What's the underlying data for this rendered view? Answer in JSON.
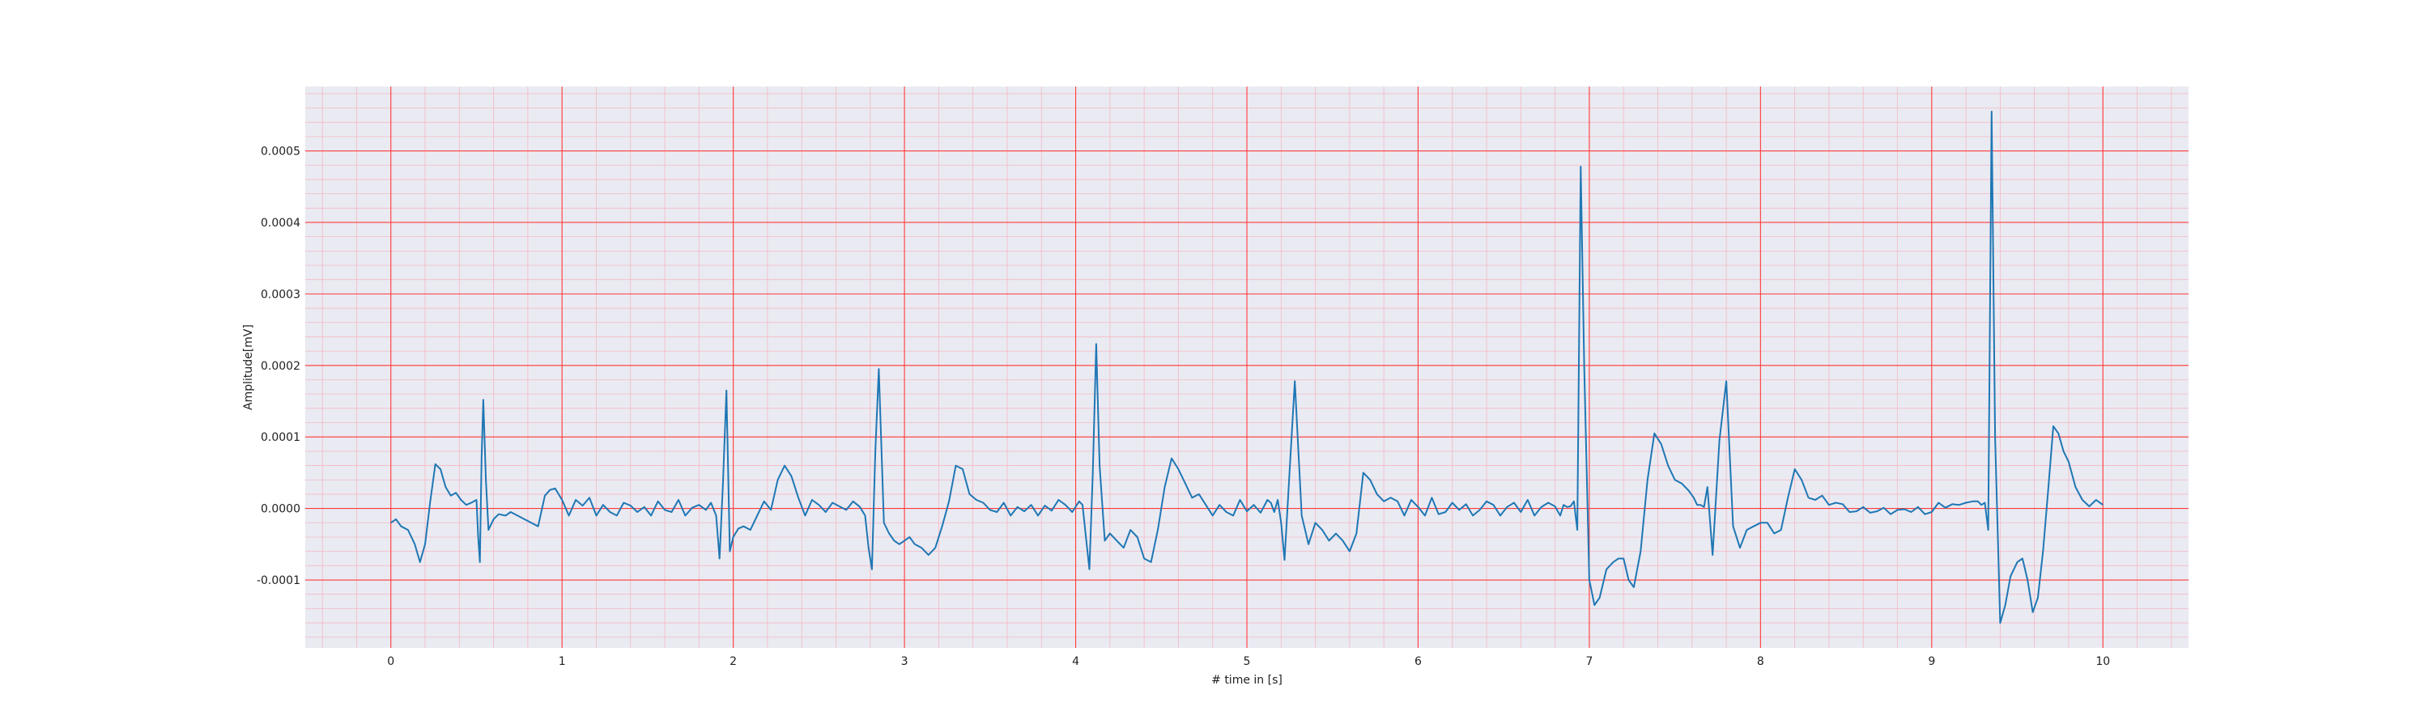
{
  "chart_data": {
    "type": "line",
    "title": "",
    "xlabel": "# time in [s]",
    "ylabel": "Amplitude[mV]",
    "xlim": [
      -0.5,
      10.5
    ],
    "ylim": [
      -0.000195,
      0.00059
    ],
    "xticks": [
      0,
      1,
      2,
      3,
      4,
      5,
      6,
      7,
      8,
      9,
      10
    ],
    "xtick_labels": [
      "0",
      "1",
      "2",
      "3",
      "4",
      "5",
      "6",
      "7",
      "8",
      "9",
      "10"
    ],
    "yticks": [
      -0.0001,
      0.0,
      0.0001,
      0.0002,
      0.0003,
      0.0004,
      0.0005
    ],
    "ytick_labels": [
      "-0.0001",
      "0.0000",
      "0.0001",
      "0.0002",
      "0.0003",
      "0.0004",
      "0.0005"
    ],
    "grid": true,
    "minor_grid": true,
    "legend": "none",
    "colors": {
      "background": "#eaeaf2",
      "major_grid": "#ff3b3b",
      "minor_grid": "#f4b8c4",
      "line": "#1f77b4"
    },
    "series": [
      {
        "x": [
          0.0,
          0.03,
          0.06,
          0.1,
          0.14,
          0.17,
          0.2,
          0.23,
          0.26,
          0.29,
          0.32,
          0.35,
          0.38,
          0.41,
          0.44,
          0.47,
          0.5,
          0.51,
          0.52,
          0.53,
          0.54,
          0.555,
          0.57,
          0.6,
          0.63,
          0.67,
          0.7,
          0.74,
          0.78,
          0.82,
          0.86,
          0.9,
          0.93,
          0.96,
          1.0,
          1.04,
          1.08,
          1.12,
          1.16,
          1.2,
          1.24,
          1.28,
          1.32,
          1.36,
          1.4,
          1.44,
          1.48,
          1.52,
          1.56,
          1.6,
          1.64,
          1.68,
          1.72,
          1.76,
          1.8,
          1.84,
          1.87,
          1.9,
          1.92,
          1.94,
          1.96,
          1.98,
          2.0,
          2.03,
          2.06,
          2.1,
          2.14,
          2.18,
          2.22,
          2.26,
          2.3,
          2.34,
          2.38,
          2.42,
          2.46,
          2.5,
          2.54,
          2.58,
          2.62,
          2.66,
          2.7,
          2.74,
          2.77,
          2.79,
          2.81,
          2.83,
          2.85,
          2.88,
          2.91,
          2.94,
          2.97,
          3.0,
          3.03,
          3.06,
          3.1,
          3.14,
          3.18,
          3.22,
          3.26,
          3.3,
          3.34,
          3.38,
          3.42,
          3.46,
          3.5,
          3.54,
          3.58,
          3.62,
          3.66,
          3.7,
          3.74,
          3.78,
          3.82,
          3.86,
          3.9,
          3.94,
          3.98,
          4.02,
          4.04,
          4.06,
          4.08,
          4.1,
          4.12,
          4.14,
          4.17,
          4.2,
          4.24,
          4.28,
          4.32,
          4.36,
          4.4,
          4.44,
          4.48,
          4.52,
          4.56,
          4.6,
          4.64,
          4.68,
          4.72,
          4.76,
          4.8,
          4.84,
          4.88,
          4.92,
          4.96,
          5.0,
          5.04,
          5.08,
          5.12,
          5.14,
          5.16,
          5.18,
          5.2,
          5.22,
          5.25,
          5.28,
          5.32,
          5.36,
          5.4,
          5.44,
          5.48,
          5.52,
          5.56,
          5.6,
          5.64,
          5.68,
          5.72,
          5.76,
          5.8,
          5.84,
          5.88,
          5.92,
          5.96,
          6.0,
          6.04,
          6.08,
          6.12,
          6.16,
          6.2,
          6.24,
          6.28,
          6.32,
          6.36,
          6.4,
          6.44,
          6.48,
          6.52,
          6.56,
          6.6,
          6.64,
          6.68,
          6.72,
          6.76,
          6.8,
          6.83,
          6.85,
          6.87,
          6.89,
          6.91,
          6.93,
          6.95,
          6.97,
          7.0,
          7.03,
          7.06,
          7.1,
          7.14,
          7.17,
          7.2,
          7.23,
          7.26,
          7.3,
          7.34,
          7.38,
          7.42,
          7.46,
          7.5,
          7.54,
          7.58,
          7.61,
          7.63,
          7.65,
          7.67,
          7.69,
          7.72,
          7.76,
          7.8,
          7.84,
          7.88,
          7.92,
          7.96,
          8.0,
          8.04,
          8.08,
          8.12,
          8.16,
          8.2,
          8.24,
          8.28,
          8.32,
          8.36,
          8.4,
          8.44,
          8.48,
          8.52,
          8.56,
          8.6,
          8.64,
          8.68,
          8.72,
          8.76,
          8.8,
          8.84,
          8.88,
          8.92,
          8.96,
          9.0,
          9.04,
          9.08,
          9.12,
          9.16,
          9.2,
          9.24,
          9.27,
          9.29,
          9.31,
          9.33,
          9.35,
          9.37,
          9.4,
          9.43,
          9.46,
          9.5,
          9.53,
          9.56,
          9.59,
          9.62,
          9.65,
          9.68,
          9.71,
          9.74,
          9.77,
          9.8,
          9.84,
          9.88,
          9.92,
          9.96,
          10.0
        ],
        "y": [
          -2e-05,
          -1.5e-05,
          -2.5e-05,
          -3e-05,
          -5e-05,
          -7.5e-05,
          -5e-05,
          1e-05,
          6.2e-05,
          5.5e-05,
          3e-05,
          1.8e-05,
          2.2e-05,
          1.2e-05,
          5e-06,
          8e-06,
          1.2e-05,
          -4e-05,
          -7.5e-05,
          7e-05,
          0.000152,
          4e-05,
          -3e-05,
          -1.5e-05,
          -8e-06,
          -1e-05,
          -5e-06,
          -1e-05,
          -1.5e-05,
          -2e-05,
          -2.5e-05,
          1.8e-05,
          2.6e-05,
          2.8e-05,
          1.2e-05,
          -1e-05,
          1.2e-05,
          4e-06,
          1.5e-05,
          -1e-05,
          5e-06,
          -5e-06,
          -1e-05,
          8e-06,
          4e-06,
          -5e-06,
          2e-06,
          -1e-05,
          1e-05,
          -2e-06,
          -5e-06,
          1.2e-05,
          -1e-05,
          1e-06,
          5e-06,
          -2e-06,
          8e-06,
          -1e-05,
          -7e-05,
          3.5e-05,
          0.000165,
          -6e-05,
          -4e-05,
          -2.8e-05,
          -2.5e-05,
          -3e-05,
          -1e-05,
          1e-05,
          -2e-06,
          4e-05,
          6e-05,
          4.5e-05,
          1.5e-05,
          -1e-05,
          1.2e-05,
          5e-06,
          -5e-06,
          8e-06,
          3e-06,
          -2e-06,
          1e-05,
          2e-06,
          -1e-05,
          -5.5e-05,
          -8.5e-05,
          8e-05,
          0.000195,
          -2e-05,
          -3.5e-05,
          -4.5e-05,
          -5e-05,
          -4.5e-05,
          -4e-05,
          -5e-05,
          -5.5e-05,
          -6.5e-05,
          -5.5e-05,
          -2.5e-05,
          1e-05,
          6e-05,
          5.5e-05,
          2e-05,
          1.2e-05,
          8e-06,
          -2e-06,
          -5e-06,
          8e-06,
          -1e-05,
          2e-06,
          -4e-06,
          5e-06,
          -1e-05,
          4e-06,
          -3e-06,
          1.2e-05,
          5e-06,
          -5e-06,
          1e-05,
          5e-06,
          -4e-05,
          -8.5e-05,
          5e-05,
          0.00023,
          6e-05,
          -4.5e-05,
          -3.5e-05,
          -4.5e-05,
          -5.5e-05,
          -3e-05,
          -4e-05,
          -7e-05,
          -7.5e-05,
          -3e-05,
          3e-05,
          7e-05,
          5.5e-05,
          3.5e-05,
          1.5e-05,
          2e-05,
          5e-06,
          -1e-05,
          5e-06,
          -5e-06,
          -1e-05,
          1.2e-05,
          -4e-06,
          5e-06,
          -6e-06,
          1.2e-05,
          8e-06,
          -5e-06,
          1.2e-05,
          -2e-05,
          -7.2e-05,
          5.5e-05,
          0.000178,
          -1e-05,
          -5e-05,
          -2e-05,
          -3e-05,
          -4.5e-05,
          -3.5e-05,
          -4.5e-05,
          -6e-05,
          -3.5e-05,
          5e-05,
          4e-05,
          2e-05,
          1e-05,
          1.5e-05,
          1e-05,
          -1e-05,
          1.2e-05,
          2e-06,
          -1e-05,
          1.5e-05,
          -8e-06,
          -5e-06,
          8e-06,
          -2e-06,
          6e-06,
          -1e-05,
          -2e-06,
          1e-05,
          5e-06,
          -1e-05,
          2e-06,
          8e-06,
          -5e-06,
          1.2e-05,
          -1e-05,
          2e-06,
          8e-06,
          3e-06,
          -1e-05,
          5e-06,
          2e-06,
          3e-06,
          1e-05,
          -3e-05,
          0.000478,
          0.0002,
          -0.0001,
          -0.000135,
          -0.000125,
          -8.5e-05,
          -7.5e-05,
          -7e-05,
          -7e-05,
          -0.0001,
          -0.00011,
          -6e-05,
          4e-05,
          0.000105,
          9e-05,
          6e-05,
          4e-05,
          3.5e-05,
          2.5e-05,
          1.5e-05,
          5e-06,
          5e-06,
          2e-06,
          3e-05,
          -6.5e-05,
          9.5e-05,
          0.000178,
          -2.5e-05,
          -5.5e-05,
          -3e-05,
          -2.5e-05,
          -2e-05,
          -2e-05,
          -3.5e-05,
          -3e-05,
          1.5e-05,
          5.5e-05,
          4e-05,
          1.5e-05,
          1.2e-05,
          1.8e-05,
          5e-06,
          8e-06,
          6e-06,
          -5e-06,
          -4e-06,
          2e-06,
          -6e-06,
          -4e-06,
          1e-06,
          -8e-06,
          -2e-06,
          -1e-06,
          -5e-06,
          2e-06,
          -8e-06,
          -5e-06,
          8e-06,
          1e-06,
          6e-06,
          5e-06,
          8e-06,
          1e-05,
          1e-05,
          5e-06,
          8e-06,
          -3e-05,
          0.000555,
          0.0001,
          -0.00016,
          -0.000135,
          -9.5e-05,
          -7.5e-05,
          -7e-05,
          -0.0001,
          -0.000145,
          -0.000125,
          -6e-05,
          2.5e-05,
          0.000115,
          0.000105,
          8e-05,
          6.5e-05,
          3e-05,
          1.2e-05,
          3e-06,
          1.2e-05,
          5e-06
        ]
      }
    ]
  }
}
